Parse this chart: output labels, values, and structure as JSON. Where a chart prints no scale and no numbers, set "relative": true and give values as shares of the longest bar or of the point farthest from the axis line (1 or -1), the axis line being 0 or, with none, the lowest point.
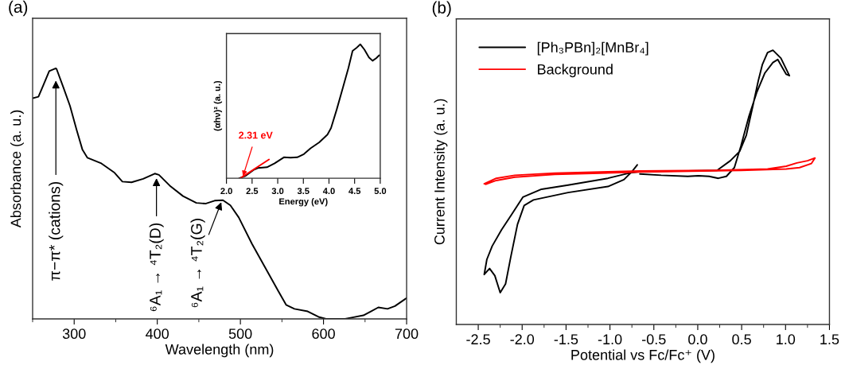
{
  "chart_data": [
    {
      "type": "line",
      "title": "(a)",
      "xlabel": "Wavelength (nm)",
      "ylabel": "Absorbance (a. u.)",
      "relative": true,
      "tick_labels": "x",
      "xlim": [
        250,
        700
      ],
      "xticks": [
        {
          "value": 250,
          "label": null
        },
        300,
        {
          "value": 350,
          "label": null
        },
        400,
        {
          "value": 450,
          "label": null
        },
        500,
        {
          "value": 550,
          "label": null
        },
        600,
        {
          "value": 650,
          "label": null
        },
        700
      ],
      "x": [
        250,
        257,
        263,
        270,
        278,
        279,
        287,
        295,
        303,
        310,
        316,
        332,
        348,
        358,
        369,
        383,
        397,
        402,
        415,
        431,
        447,
        458,
        469,
        479,
        488,
        498,
        514,
        530,
        546,
        555,
        565,
        581,
        594,
        603,
        626,
        635,
        648,
        657,
        666,
        677,
        686,
        700
      ],
      "series": [
        {
          "color": "#000000",
          "values": [
            0.881,
            0.887,
            0.934,
            0.989,
            1.0,
            0.996,
            0.924,
            0.85,
            0.754,
            0.675,
            0.643,
            0.622,
            0.585,
            0.548,
            0.545,
            0.559,
            0.58,
            0.575,
            0.532,
            0.49,
            0.463,
            0.46,
            0.472,
            0.474,
            0.453,
            0.405,
            0.299,
            0.204,
            0.109,
            0.056,
            0.04,
            0.03,
            0.008,
            0.0,
            0.0,
            0.006,
            0.014,
            0.03,
            0.046,
            0.04,
            0.051,
            0.083
          ]
        }
      ],
      "annotations": [
        {
          "text": "π−π* (cations)",
          "x": 278,
          "y": 0.96
        },
        {
          "text": "⁶A₁ → ⁴T₂(D)",
          "x": 399,
          "y": 0.57
        },
        {
          "text": "⁶A₁ → ⁴T₂(G)",
          "x": 478,
          "y": 0.474
        }
      ]
    },
    {
      "type": "line",
      "xlabel": "Energy (eV)",
      "ylabel": "(αhν)² (a. u.)",
      "relative": true,
      "tick_labels": "x",
      "xlim": [
        2.0,
        5.0
      ],
      "xticks": [
        {
          "value": 2.0,
          "label": "2.0"
        },
        2.5,
        {
          "value": 3.0,
          "label": "3.0"
        },
        3.5,
        {
          "value": 4.0,
          "label": "4.0"
        },
        4.5,
        {
          "value": 5.0,
          "label": "5.0"
        }
      ],
      "series": [
        {
          "color": "#000000",
          "x": [
            2.25,
            2.375,
            2.53,
            2.61,
            2.79,
            2.94,
            3.12,
            3.25,
            3.38,
            3.51,
            3.64,
            3.81,
            3.97,
            4.04,
            4.15,
            4.28,
            4.38,
            4.46,
            4.53,
            4.61,
            4.69,
            4.78,
            4.85,
            4.92,
            4.98
          ],
          "values": [
            0.0,
            0.018,
            0.062,
            0.076,
            0.082,
            0.111,
            0.156,
            0.154,
            0.156,
            0.18,
            0.223,
            0.268,
            0.326,
            0.375,
            0.512,
            0.688,
            0.824,
            0.951,
            0.971,
            1.0,
            0.961,
            0.902,
            0.877,
            0.896,
            0.918
          ]
        },
        {
          "color": "#ff0000",
          "x": [
            2.27,
            2.83
          ],
          "values": [
            0.0,
            0.14
          ]
        }
      ],
      "annotations": [
        {
          "text": "2.31 eV",
          "x": 2.31,
          "y": 0.0
        }
      ]
    },
    {
      "type": "line",
      "title": "(b)",
      "xlabel": "Potential vs Fc/Fc⁺ (V)",
      "ylabel": "Current Intensity (a. u.)",
      "relative": true,
      "tick_labels": "x",
      "legend": "top left",
      "xlim": [
        -2.75,
        1.5
      ],
      "xticks": [
        -2.5,
        {
          "value": -2.25,
          "label": null
        },
        {
          "value": -2.0,
          "label": "-2.0"
        },
        {
          "value": -1.75,
          "label": null
        },
        -1.5,
        {
          "value": -1.25,
          "label": null
        },
        {
          "value": -1.0,
          "label": "-1.0"
        },
        {
          "value": -0.75,
          "label": null
        },
        -0.5,
        {
          "value": -0.25,
          "label": null
        },
        {
          "value": 0.0,
          "label": "0.0"
        },
        {
          "value": 0.25,
          "label": null
        },
        0.5,
        {
          "value": 0.75,
          "label": null
        },
        {
          "value": 1.0,
          "label": "1.0"
        },
        {
          "value": 1.25,
          "label": null
        },
        1.5
      ],
      "series": [
        {
          "name": "[Ph₃PBn]₂[MnBr₄]",
          "color": "#000000",
          "x": [
            -0.659,
            -0.417,
            -0.114,
            0.008,
            0.129,
            0.235,
            0.326,
            0.417,
            0.492,
            0.583,
            0.674,
            0.765,
            0.856,
            0.911,
            0.962,
            1.008,
            1.044,
            0.947,
            0.856,
            0.795,
            0.735,
            0.689,
            0.629,
            0.553,
            0.477,
            0.371,
            0.22,
            -0.114,
            -0.417,
            -0.659,
            -0.78,
            -1.023,
            -1.477,
            -1.78,
            -1.992,
            -2.114,
            -2.235,
            -2.341,
            -2.402,
            -2.432,
            -2.371,
            -2.311,
            -2.25,
            -2.189,
            -2.129,
            -2.053,
            -1.977,
            -1.871,
            -1.477,
            -1.023,
            -0.841,
            -0.75,
            -0.689
          ],
          "values": [
            0.549,
            0.544,
            0.54,
            0.542,
            0.54,
            0.533,
            0.54,
            0.572,
            0.651,
            0.759,
            0.848,
            0.917,
            0.955,
            0.966,
            0.937,
            0.912,
            0.907,
            0.971,
            1.0,
            0.991,
            0.947,
            0.888,
            0.799,
            0.69,
            0.631,
            0.597,
            0.562,
            0.56,
            0.559,
            0.557,
            0.552,
            0.533,
            0.508,
            0.493,
            0.464,
            0.404,
            0.345,
            0.286,
            0.237,
            0.182,
            0.204,
            0.178,
            0.116,
            0.148,
            0.247,
            0.365,
            0.434,
            0.454,
            0.481,
            0.503,
            0.528,
            0.557,
            0.582
          ]
        },
        {
          "name": "Background",
          "color": "#ff0000",
          "x": [
            -2.432,
            -2.295,
            -2.083,
            -1.629,
            -1.023,
            -0.659,
            0.189,
            0.795,
            1.008,
            1.129,
            1.25,
            1.335,
            1.295,
            1.159,
            1.008,
            0.492,
            -0.659,
            -1.629,
            -2.083,
            -2.295,
            -2.417
          ],
          "values": [
            0.513,
            0.533,
            0.544,
            0.552,
            0.557,
            0.56,
            0.562,
            0.567,
            0.577,
            0.589,
            0.597,
            0.607,
            0.587,
            0.572,
            0.567,
            0.562,
            0.556,
            0.547,
            0.537,
            0.525,
            0.511
          ]
        }
      ]
    }
  ]
}
